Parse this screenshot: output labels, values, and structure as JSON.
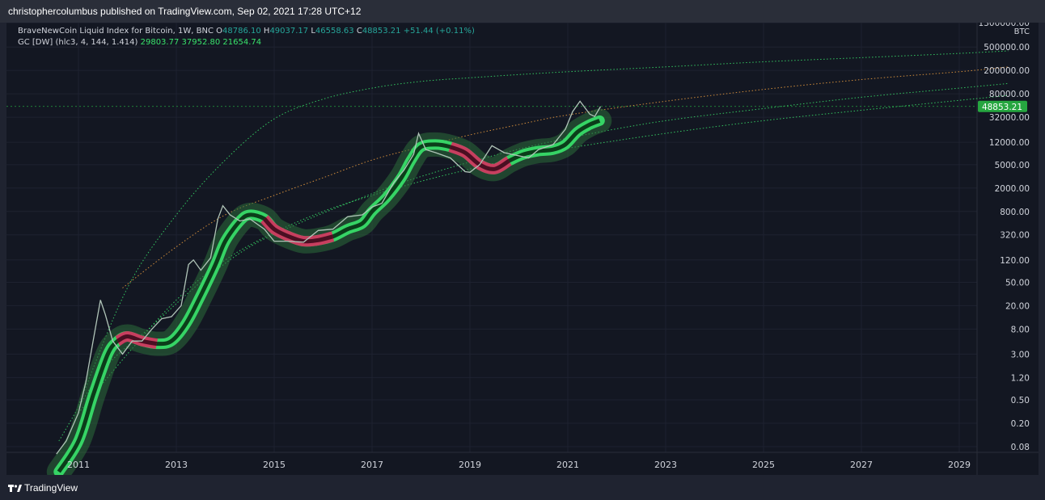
{
  "header": {
    "text": "christophercolumbus published on TradingView.com, Sep 02, 2021 17:28 UTC+12"
  },
  "legend": {
    "symbol": "BraveNewCoin Liquid Index for Bitcoin, 1W, BNC",
    "o_label": "O",
    "o_val": "48786.10",
    "h_label": "H",
    "h_val": "49037.17",
    "l_label": "L",
    "l_val": "46558.63",
    "c_label": "C",
    "c_val": "48853.21",
    "change": "+51.44 (+0.11%)",
    "indicator": "GC [DW] (hlc3, 4, 144, 1.414)",
    "ind_v1": "29803.77",
    "ind_v2": "37952.80",
    "ind_v3": "21654.74"
  },
  "footer": {
    "brand": "TradingView"
  },
  "colors": {
    "bg": "#131722",
    "grid": "#1e2230",
    "green": "#39e36b",
    "red": "#e0245e",
    "orange": "#f0a040",
    "price_badge": "#26a640"
  },
  "chart_data": {
    "type": "line",
    "scale": "log",
    "currency": "BTC",
    "last_price": "48853.21",
    "x_ticks": [
      "2011",
      "2013",
      "2015",
      "2017",
      "2019",
      "2021",
      "2023",
      "2025",
      "2027",
      "2029"
    ],
    "y_ticks": [
      "1300000.00",
      "500000.00",
      "200000.00",
      "80000.00",
      "32000.00",
      "12000.00",
      "5000.00",
      "2000.00",
      "800.00",
      "320.00",
      "120.00",
      "50.00",
      "20.00",
      "8.00",
      "3.00",
      "1.20",
      "0.50",
      "0.20",
      "0.08"
    ],
    "xlim": [
      2010.0,
      2030.0
    ],
    "ylim": [
      0.06,
      1300000
    ],
    "price": {
      "x": [
        2010.55,
        2010.75,
        2011.0,
        2011.15,
        2011.3,
        2011.45,
        2011.55,
        2011.7,
        2011.9,
        2012.1,
        2012.3,
        2012.5,
        2012.7,
        2012.9,
        2013.1,
        2013.25,
        2013.35,
        2013.5,
        2013.7,
        2013.85,
        2013.95,
        2014.1,
        2014.3,
        2014.5,
        2014.8,
        2015.0,
        2015.3,
        2015.6,
        2015.9,
        2016.2,
        2016.5,
        2016.8,
        2017.0,
        2017.2,
        2017.45,
        2017.65,
        2017.85,
        2017.95,
        2018.1,
        2018.3,
        2018.6,
        2018.9,
        2019.0,
        2019.2,
        2019.45,
        2019.7,
        2019.95,
        2020.2,
        2020.4,
        2020.7,
        2020.95,
        2021.1,
        2021.25,
        2021.45,
        2021.55,
        2021.67
      ],
      "y": [
        0.06,
        0.1,
        0.3,
        1,
        5,
        25,
        14,
        5,
        3,
        5,
        5,
        8,
        12,
        13,
        20,
        100,
        120,
        80,
        130,
        600,
        1000,
        700,
        550,
        600,
        400,
        250,
        250,
        240,
        380,
        400,
        650,
        700,
        950,
        1100,
        2500,
        4000,
        7500,
        17000,
        9000,
        8000,
        6500,
        3800,
        3700,
        5000,
        10500,
        8000,
        7200,
        6500,
        9000,
        11000,
        20000,
        40000,
        60000,
        36000,
        33000,
        48853
      ]
    },
    "bands": [
      {
        "name": "band-top",
        "style": "green-dotted",
        "x": [
          2011.0,
          2012,
          2013,
          2014,
          2015,
          2016,
          2017,
          2018,
          2019,
          2020,
          2021,
          2023,
          2025,
          2027,
          2029,
          2030
        ],
        "y": [
          0.4,
          40,
          700,
          6000,
          30000,
          65000,
          100000,
          130000,
          150000,
          170000,
          190000,
          230000,
          280000,
          330000,
          390000,
          430000
        ]
      },
      {
        "name": "band-orange",
        "style": "orange-dotted",
        "x": [
          2011.9,
          2013,
          2014,
          2015,
          2016,
          2017,
          2018,
          2019,
          2020,
          2021,
          2023,
          2025,
          2027,
          2029,
          2030
        ],
        "y": [
          40,
          200,
          700,
          1500,
          3000,
          6000,
          10000,
          16000,
          24000,
          35000,
          60000,
          95000,
          140000,
          190000,
          230000
        ]
      },
      {
        "name": "band-lower-1",
        "style": "green-dotted",
        "x": [
          2010.6,
          2011.5,
          2012.5,
          2013.5,
          2014.5,
          2015.5,
          2016.5,
          2017.5,
          2018.5,
          2019.5,
          2020.5,
          2021.5,
          2023,
          2025,
          2027,
          2029,
          2030
        ],
        "y": [
          0.1,
          1.6,
          9,
          50,
          200,
          500,
          1100,
          2300,
          4200,
          7200,
          11500,
          17000,
          28000,
          45000,
          70000,
          100000,
          120000
        ]
      },
      {
        "name": "band-lower-2",
        "style": "green-dotted",
        "x": [
          2011.0,
          2012,
          2013,
          2014,
          2015,
          2016,
          2017,
          2018,
          2019,
          2020,
          2021,
          2023,
          2025,
          2027,
          2029,
          2030
        ],
        "y": [
          0.3,
          3,
          25,
          120,
          350,
          800,
          1500,
          2600,
          4200,
          6500,
          9500,
          17000,
          28000,
          42000,
          62000,
          75000
        ]
      }
    ],
    "gc_line": {
      "x": [
        2010.6,
        2011.0,
        2011.3,
        2011.6,
        2011.8,
        2012.0,
        2012.3,
        2012.6,
        2012.9,
        2013.2,
        2013.5,
        2013.8,
        2014.0,
        2014.3,
        2014.5,
        2014.8,
        2015.0,
        2015.3,
        2015.6,
        2015.9,
        2016.2,
        2016.5,
        2016.8,
        2017.0,
        2017.3,
        2017.6,
        2017.8,
        2018.0,
        2018.3,
        2018.6,
        2018.9,
        2019.2,
        2019.5,
        2019.8,
        2020.1,
        2020.4,
        2020.7,
        2020.95,
        2021.2,
        2021.45,
        2021.65
      ],
      "y": [
        0.03,
        0.1,
        0.6,
        3,
        5,
        6,
        5,
        4.5,
        5,
        10,
        30,
        100,
        250,
        550,
        700,
        600,
        400,
        300,
        250,
        260,
        300,
        400,
        500,
        800,
        1400,
        3000,
        6000,
        10000,
        11000,
        10000,
        8000,
        5000,
        4200,
        5800,
        7500,
        8500,
        9000,
        11000,
        18000,
        24000,
        28000
      ]
    },
    "gc_red_segments": [
      [
        2011.95,
        2012.4
      ],
      [
        2014.85,
        2015.9
      ],
      [
        2018.85,
        2019.7
      ]
    ]
  }
}
